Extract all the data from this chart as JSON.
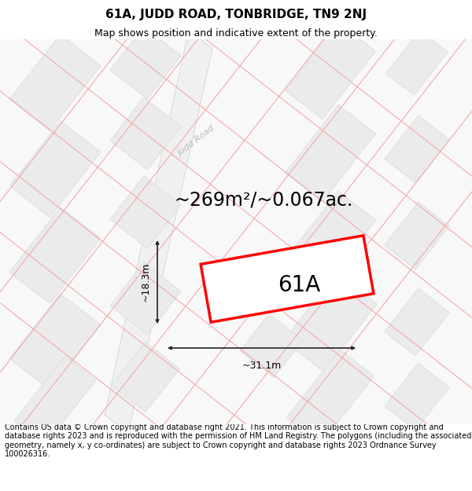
{
  "title": "61A, JUDD ROAD, TONBRIDGE, TN9 2NJ",
  "subtitle": "Map shows position and indicative extent of the property.",
  "area_text": "~269m²/~0.067ac.",
  "label_61a": "61A",
  "dim_width": "~31.1m",
  "dim_height": "~18.3m",
  "road_label": "Judd Road",
  "footer": "Contains OS data © Crown copyright and database right 2021. This information is subject to Crown copyright and database rights 2023 and is reproduced with the permission of HM Land Registry. The polygons (including the associated geometry, namely x, y co-ordinates) are subject to Crown copyright and database rights 2023 Ordnance Survey 100026316.",
  "bg_color": "#ffffff",
  "map_bg": "#ffffff",
  "bld_face": "#ebebeb",
  "bld_edge": "#dddddd",
  "pink_line": "#f4a0a0",
  "red_polygon": "#ff0000",
  "road_label_color": "#bbbbbb",
  "title_fontsize": 11,
  "subtitle_fontsize": 9,
  "area_fontsize": 17,
  "label_fontsize": 20,
  "footer_fontsize": 7,
  "title_color": "#000000",
  "footer_color": "#000000"
}
